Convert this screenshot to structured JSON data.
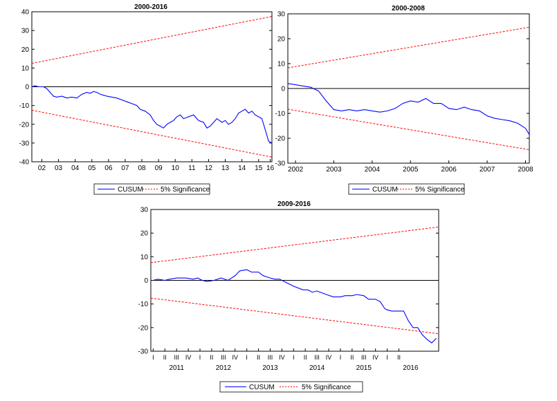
{
  "colors": {
    "cusum": "#0000FF",
    "significance": "#FF0000",
    "axis": "#000000",
    "background": "#FFFFFF"
  },
  "chart_data": [
    {
      "id": "chart-2000-2016",
      "type": "line",
      "title": "2000-2016",
      "xlabel": "",
      "ylabel": "",
      "xlim": [
        2001.6,
        2016.0
      ],
      "ylim": [
        -40,
        40
      ],
      "y_ticks": [
        -40,
        -30,
        -20,
        -10,
        0,
        10,
        20,
        30,
        40
      ],
      "x_tick_labels": [
        {
          "label": "02",
          "x": 2002.2
        },
        {
          "label": "03",
          "x": 2003.2
        },
        {
          "label": "04",
          "x": 2004.2
        },
        {
          "label": "05",
          "x": 2005.2
        },
        {
          "label": "06",
          "x": 2006.2
        },
        {
          "label": "07",
          "x": 2007.2
        },
        {
          "label": "08",
          "x": 2008.2
        },
        {
          "label": "09",
          "x": 2009.2
        },
        {
          "label": "10",
          "x": 2010.2
        },
        {
          "label": "11",
          "x": 2011.2
        },
        {
          "label": "12",
          "x": 2012.2
        },
        {
          "label": "13",
          "x": 2013.2
        },
        {
          "label": "14",
          "x": 2014.2
        },
        {
          "label": "15",
          "x": 2015.2
        },
        {
          "label": "16",
          "x": 2015.9
        }
      ],
      "legend": [
        "CUSUM",
        "5% Significance"
      ],
      "series": [
        {
          "name": "CUSUM",
          "style": "solid",
          "x": [
            2001.6,
            2001.8,
            2002.0,
            2002.3,
            2002.5,
            2002.7,
            2002.9,
            2003.1,
            2003.4,
            2003.7,
            2004.0,
            2004.3,
            2004.6,
            2004.9,
            2005.1,
            2005.3,
            2005.5,
            2005.7,
            2005.9,
            2006.1,
            2006.4,
            2006.7,
            2007.0,
            2007.3,
            2007.6,
            2007.9,
            2008.1,
            2008.4,
            2008.7,
            2008.9,
            2009.1,
            2009.3,
            2009.5,
            2009.7,
            2009.9,
            2010.1,
            2010.3,
            2010.5,
            2010.7,
            2011.0,
            2011.3,
            2011.6,
            2011.9,
            2012.1,
            2012.3,
            2012.5,
            2012.7,
            2013.0,
            2013.2,
            2013.4,
            2013.6,
            2013.8,
            2014.0,
            2014.2,
            2014.4,
            2014.6,
            2014.8,
            2015.0,
            2015.2,
            2015.4,
            2015.6,
            2015.8,
            2016.0
          ],
          "y": [
            0,
            0.5,
            0,
            0,
            -1,
            -3,
            -5,
            -5.5,
            -5,
            -6,
            -5.5,
            -6,
            -4,
            -3,
            -3.5,
            -2.5,
            -3,
            -4,
            -4.5,
            -5,
            -5.5,
            -6,
            -7,
            -8,
            -9,
            -10,
            -12,
            -13,
            -15,
            -18,
            -20,
            -21,
            -22,
            -20,
            -19,
            -18,
            -16,
            -15,
            -17,
            -16,
            -15,
            -18,
            -19,
            -22,
            -21,
            -19,
            -17,
            -19,
            -18,
            -20,
            -19,
            -17,
            -14,
            -13,
            -12,
            -14,
            -13,
            -15,
            -16,
            -17,
            -23,
            -29,
            -30
          ]
        },
        {
          "name": "5% Significance (upper)",
          "style": "dashed",
          "x": [
            2001.6,
            2016.0
          ],
          "y": [
            12.5,
            37.5
          ]
        },
        {
          "name": "5% Significance (lower)",
          "style": "dashed",
          "x": [
            2001.6,
            2016.0
          ],
          "y": [
            -12.5,
            -37.5
          ]
        }
      ]
    },
    {
      "id": "chart-2000-2008",
      "type": "line",
      "title": "2000-2008",
      "xlabel": "",
      "ylabel": "",
      "xlim": [
        2001.8,
        2008.1
      ],
      "ylim": [
        -30,
        30
      ],
      "y_ticks": [
        -30,
        -20,
        -10,
        0,
        10,
        20,
        30
      ],
      "x_tick_labels": [
        {
          "label": "2002",
          "x": 2002.0
        },
        {
          "label": "2003",
          "x": 2003.0
        },
        {
          "label": "2004",
          "x": 2004.0
        },
        {
          "label": "2005",
          "x": 2005.0
        },
        {
          "label": "2006",
          "x": 2006.0
        },
        {
          "label": "2007",
          "x": 2007.0
        },
        {
          "label": "2008",
          "x": 2008.0
        }
      ],
      "legend": [
        "CUSUM",
        "5% Significance"
      ],
      "series": [
        {
          "name": "CUSUM",
          "style": "solid",
          "x": [
            2001.8,
            2002.0,
            2002.2,
            2002.4,
            2002.6,
            2002.8,
            2003.0,
            2003.2,
            2003.4,
            2003.6,
            2003.8,
            2004.0,
            2004.2,
            2004.4,
            2004.6,
            2004.8,
            2005.0,
            2005.2,
            2005.4,
            2005.6,
            2005.8,
            2006.0,
            2006.2,
            2006.4,
            2006.6,
            2006.8,
            2007.0,
            2007.2,
            2007.4,
            2007.6,
            2007.8,
            2008.0,
            2008.1
          ],
          "y": [
            2,
            1.5,
            1,
            0.5,
            -1,
            -5,
            -8.5,
            -9,
            -8.5,
            -9,
            -8.5,
            -9,
            -9.5,
            -9,
            -8,
            -6,
            -5,
            -5.5,
            -4,
            -6,
            -6,
            -8,
            -8.5,
            -7.5,
            -8.5,
            -9,
            -11,
            -12,
            -12.5,
            -13,
            -14,
            -16,
            -18.5
          ]
        },
        {
          "name": "5% Significance (upper)",
          "style": "dashed",
          "x": [
            2001.8,
            2008.1
          ],
          "y": [
            8.3,
            24.6
          ]
        },
        {
          "name": "5% Significance (lower)",
          "style": "dashed",
          "x": [
            2001.8,
            2008.1
          ],
          "y": [
            -8.3,
            -24.6
          ]
        }
      ]
    },
    {
      "id": "chart-2009-2016",
      "type": "line",
      "title": "2009-2016",
      "xlabel": "",
      "ylabel": "",
      "xlim": [
        2010.45,
        2016.6
      ],
      "ylim": [
        -30,
        30
      ],
      "y_ticks": [
        -30,
        -20,
        -10,
        0,
        10,
        20,
        30
      ],
      "x_tick_labels_quarters": [
        "I",
        "II",
        "III",
        "IV",
        "I",
        "II",
        "III",
        "IV",
        "I",
        "II",
        "III",
        "IV",
        "I",
        "II",
        "III",
        "IV",
        "I",
        "II",
        "III",
        "IV",
        "I",
        "II"
      ],
      "quarter_start": 2010.5,
      "x_tick_labels_years": [
        {
          "label": "2011",
          "x": 2011.0
        },
        {
          "label": "2012",
          "x": 2012.0
        },
        {
          "label": "2013",
          "x": 2013.0
        },
        {
          "label": "2014",
          "x": 2014.0
        },
        {
          "label": "2015",
          "x": 2015.0
        },
        {
          "label": "2016",
          "x": 2016.0
        }
      ],
      "legend": [
        "CUSUM",
        "5% Significance"
      ],
      "series": [
        {
          "name": "CUSUM",
          "style": "solid",
          "x": [
            2010.5,
            2010.6,
            2010.75,
            2010.85,
            2011.0,
            2011.2,
            2011.35,
            2011.45,
            2011.55,
            2011.65,
            2011.8,
            2011.95,
            2012.1,
            2012.25,
            2012.35,
            2012.5,
            2012.6,
            2012.75,
            2012.85,
            2013.0,
            2013.1,
            2013.2,
            2013.35,
            2013.5,
            2013.7,
            2013.8,
            2013.9,
            2014.0,
            2014.2,
            2014.35,
            2014.5,
            2014.6,
            2014.75,
            2014.85,
            2015.0,
            2015.1,
            2015.25,
            2015.35,
            2015.45,
            2015.5,
            2015.6,
            2015.75,
            2015.85,
            2015.95,
            2016.05,
            2016.15,
            2016.25,
            2016.35,
            2016.45,
            2016.55
          ],
          "y": [
            0,
            0.5,
            0,
            0.5,
            1,
            1,
            0.5,
            1,
            0,
            -0.5,
            0,
            1,
            0,
            2,
            4,
            4.5,
            3.5,
            3.5,
            2,
            1,
            0.5,
            0.5,
            -1,
            -2.5,
            -4,
            -4,
            -5,
            -4.5,
            -6,
            -7,
            -7,
            -6.5,
            -6.5,
            -6,
            -6.5,
            -8,
            -8,
            -9,
            -12,
            -12.5,
            -13,
            -13,
            -13,
            -17,
            -20,
            -20,
            -23,
            -25,
            -26.5,
            -24.5
          ]
        },
        {
          "name": "5% Significance (upper)",
          "style": "dashed",
          "x": [
            2010.45,
            2016.6
          ],
          "y": [
            7.5,
            22.6
          ]
        },
        {
          "name": "5% Significance (lower)",
          "style": "dashed",
          "x": [
            2010.45,
            2016.6
          ],
          "y": [
            -7.5,
            -22.6
          ]
        }
      ]
    }
  ]
}
